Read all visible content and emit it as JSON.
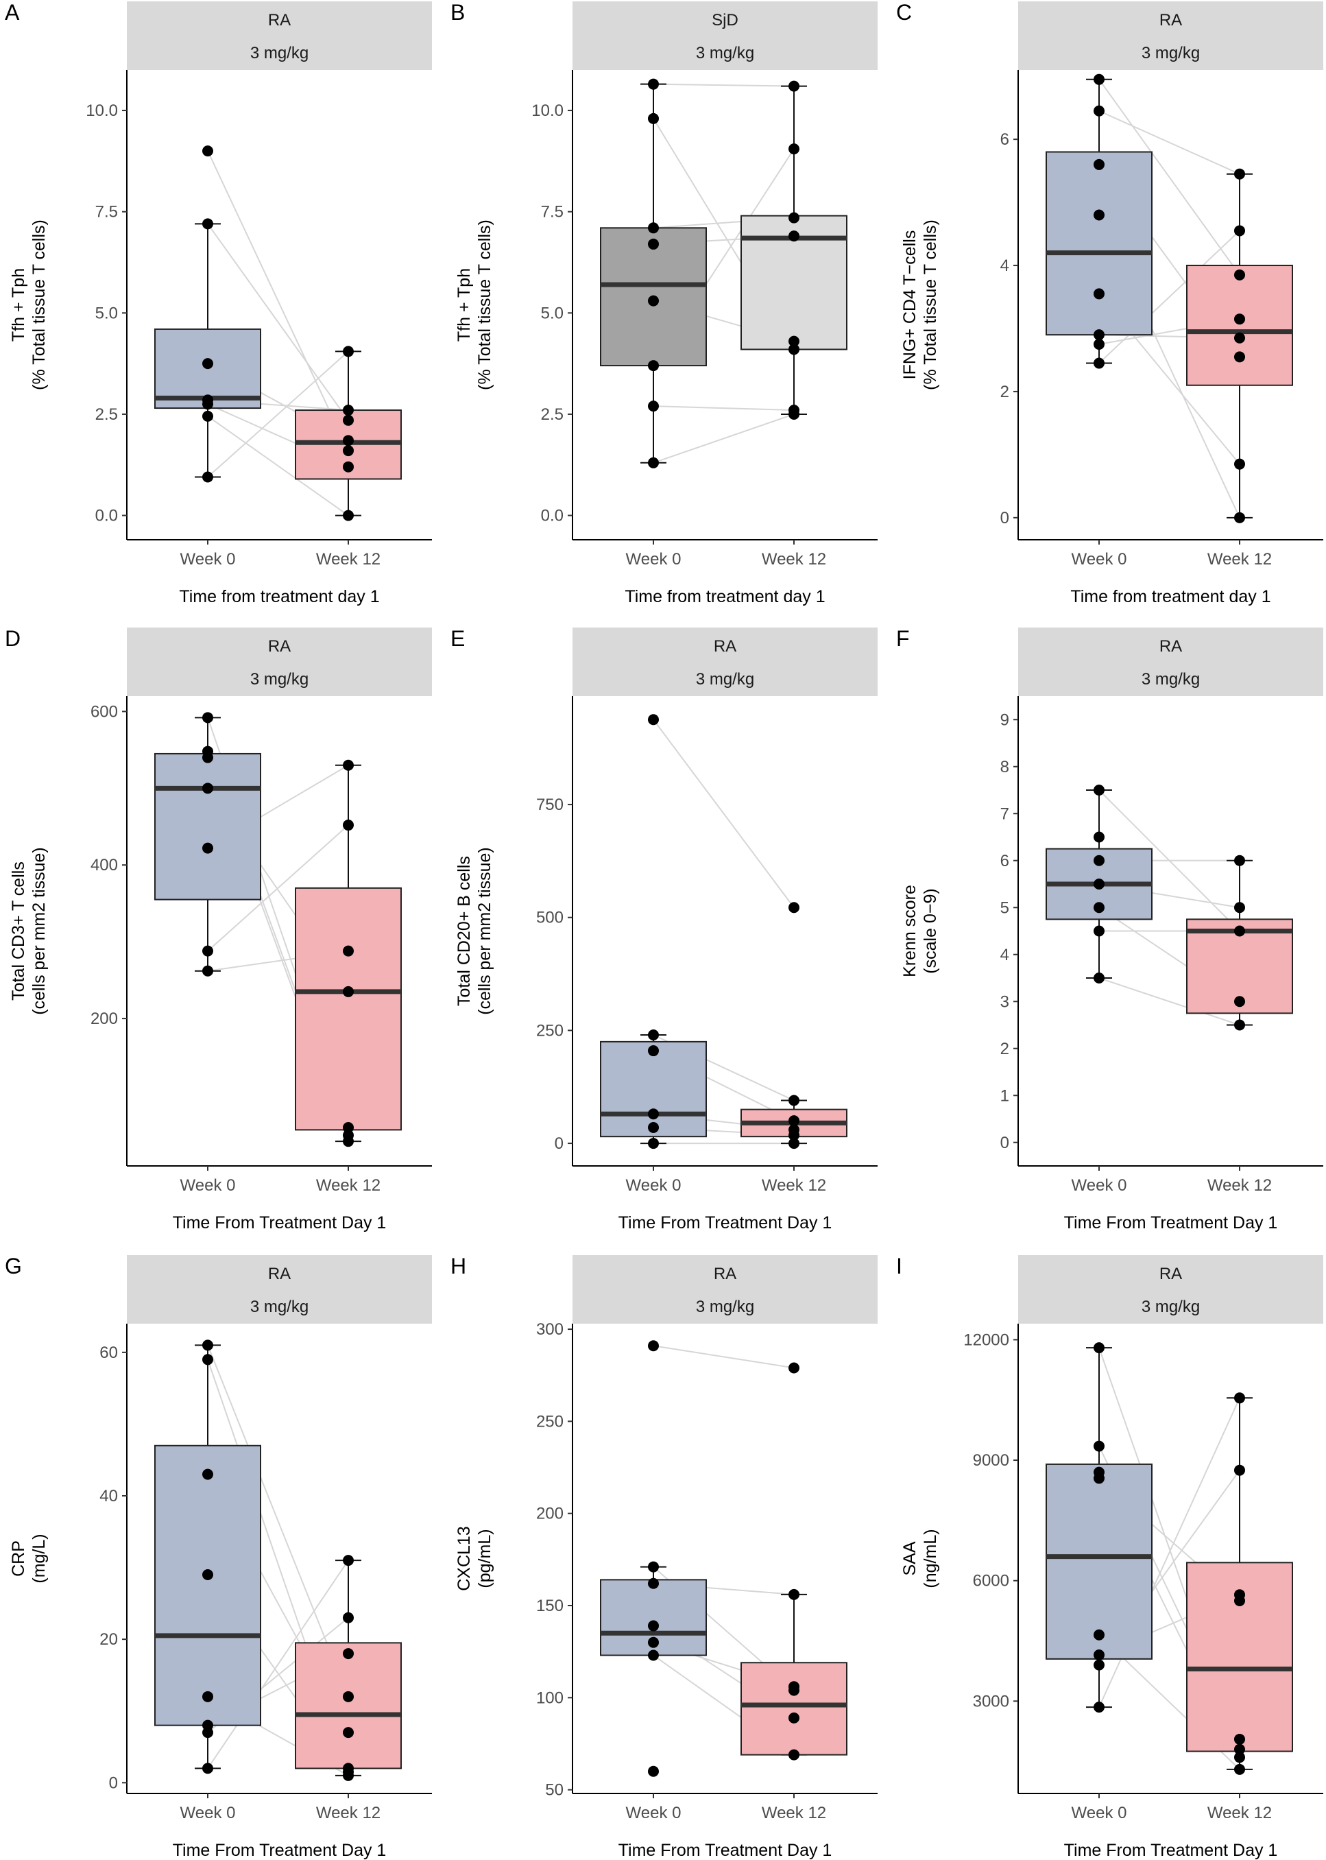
{
  "panels": [
    {
      "letter": "A",
      "strip": [
        "RA",
        "3 mg/kg"
      ],
      "ylabel": [
        "Tfh + Tph",
        "(% Total tissue T cells)"
      ],
      "xlabel": "Time from treatment day 1",
      "chart_data": {
        "type": "box",
        "categories": [
          "Week 0",
          "Week 12"
        ],
        "ylim": [
          -0.6,
          11.0
        ],
        "yticks": [
          0.0,
          2.5,
          5.0,
          7.5,
          10.0
        ],
        "ytick_labels": [
          "0.0",
          "2.5",
          "5.0",
          "7.5",
          "10.0"
        ],
        "fills": [
          "#b0bace",
          "#f3b3b6"
        ],
        "boxes": [
          {
            "q1": 2.65,
            "median": 2.9,
            "q3": 4.6,
            "wlo": 0.95,
            "whi": 7.2
          },
          {
            "q1": 0.9,
            "median": 1.8,
            "q3": 2.6,
            "wlo": 0.0,
            "whi": 4.05
          }
        ],
        "points": [
          [
            9.0,
            7.2,
            3.75,
            2.85,
            2.75,
            2.45,
            0.95
          ],
          [
            4.05,
            2.6,
            2.35,
            1.85,
            1.6,
            1.2,
            0.0
          ]
        ],
        "pairs": [
          [
            9.0,
            1.6
          ],
          [
            7.2,
            2.35
          ],
          [
            3.75,
            1.85
          ],
          [
            2.85,
            2.6
          ],
          [
            2.75,
            1.2
          ],
          [
            2.45,
            0.0
          ],
          [
            0.95,
            4.05
          ]
        ]
      }
    },
    {
      "letter": "B",
      "strip": [
        "SjD",
        "3 mg/kg"
      ],
      "ylabel": [
        "Tfh + Tph",
        "(% Total tissue T cells)"
      ],
      "xlabel": "Time from treatment day 1",
      "chart_data": {
        "type": "box",
        "categories": [
          "Week 0",
          "Week 12"
        ],
        "ylim": [
          -0.6,
          11.0
        ],
        "yticks": [
          0.0,
          2.5,
          5.0,
          7.5,
          10.0
        ],
        "ytick_labels": [
          "0.0",
          "2.5",
          "5.0",
          "7.5",
          "10.0"
        ],
        "fills": [
          "#a3a3a3",
          "#dcdcdc"
        ],
        "boxes": [
          {
            "q1": 3.7,
            "median": 5.7,
            "q3": 7.1,
            "wlo": 1.3,
            "whi": 10.65
          },
          {
            "q1": 4.1,
            "median": 6.85,
            "q3": 7.4,
            "wlo": 2.5,
            "whi": 10.6
          }
        ],
        "points": [
          [
            10.65,
            9.8,
            7.1,
            6.7,
            5.3,
            3.7,
            2.7,
            1.3
          ],
          [
            10.6,
            9.05,
            7.35,
            6.9,
            4.3,
            4.1,
            2.6,
            2.5
          ]
        ],
        "pairs": [
          [
            10.65,
            10.6
          ],
          [
            9.8,
            4.1
          ],
          [
            7.1,
            7.35
          ],
          [
            6.7,
            6.9
          ],
          [
            5.3,
            4.3
          ],
          [
            3.7,
            9.05
          ],
          [
            2.7,
            2.6
          ],
          [
            1.3,
            2.5
          ]
        ]
      }
    },
    {
      "letter": "C",
      "strip": [
        "RA",
        "3 mg/kg"
      ],
      "ylabel": [
        "IFNG+ CD4 T−cells",
        "(% Total tissue T cells)"
      ],
      "xlabel": "Time from treatment day 1",
      "chart_data": {
        "type": "box",
        "categories": [
          "Week 0",
          "Week 12"
        ],
        "ylim": [
          -0.35,
          7.1
        ],
        "yticks": [
          0,
          2,
          4,
          6
        ],
        "ytick_labels": [
          "0",
          "2",
          "4",
          "6"
        ],
        "fills": [
          "#b0bace",
          "#f3b3b6"
        ],
        "boxes": [
          {
            "q1": 2.9,
            "median": 4.2,
            "q3": 5.8,
            "wlo": 2.45,
            "whi": 6.95
          },
          {
            "q1": 2.1,
            "median": 2.95,
            "q3": 4.0,
            "wlo": 0.0,
            "whi": 5.45
          }
        ],
        "points": [
          [
            6.95,
            6.45,
            5.6,
            4.8,
            3.55,
            2.9,
            2.75,
            2.45
          ],
          [
            5.45,
            4.55,
            3.85,
            3.15,
            2.85,
            2.55,
            0.85,
            0.0
          ]
        ],
        "pairs": [
          [
            6.95,
            3.85
          ],
          [
            6.45,
            5.45
          ],
          [
            5.6,
            2.55
          ],
          [
            4.8,
            0.0
          ],
          [
            3.55,
            0.85
          ],
          [
            2.9,
            2.85
          ],
          [
            2.75,
            3.15
          ],
          [
            2.45,
            4.55
          ]
        ]
      }
    },
    {
      "letter": "D",
      "strip": [
        "RA",
        "3 mg/kg"
      ],
      "ylabel": [
        "Total CD3+ T cells",
        "(cells per mm2 tissue)"
      ],
      "xlabel": "Time From Treatment Day 1",
      "chart_data": {
        "type": "box",
        "categories": [
          "Week 0",
          "Week 12"
        ],
        "ylim": [
          8,
          620
        ],
        "yticks": [
          200,
          400,
          600
        ],
        "ytick_labels": [
          "200",
          "400",
          "600"
        ],
        "fills": [
          "#b0bace",
          "#f3b3b6"
        ],
        "boxes": [
          {
            "q1": 355,
            "median": 500,
            "q3": 545,
            "wlo": 262,
            "whi": 592
          },
          {
            "q1": 55,
            "median": 235,
            "q3": 370,
            "wlo": 40,
            "whi": 530
          }
        ],
        "points": [
          [
            592,
            548,
            540,
            500,
            422,
            288,
            262
          ],
          [
            530,
            452,
            288,
            235,
            58,
            48,
            40
          ]
        ],
        "pairs": [
          [
            592,
            58
          ],
          [
            548,
            48
          ],
          [
            540,
            40
          ],
          [
            500,
            235
          ],
          [
            422,
            530
          ],
          [
            288,
            452
          ],
          [
            262,
            288
          ]
        ]
      }
    },
    {
      "letter": "E",
      "strip": [
        "RA",
        "3 mg/kg"
      ],
      "ylabel": [
        "Total CD20+ B cells",
        "(cells per mm2 tissue)"
      ],
      "xlabel": "Time From Treatment Day 1",
      "chart_data": {
        "type": "box",
        "categories": [
          "Week 0",
          "Week 12"
        ],
        "ylim": [
          -50,
          990
        ],
        "yticks": [
          0,
          250,
          500,
          750
        ],
        "ytick_labels": [
          "0",
          "250",
          "500",
          "750"
        ],
        "fills": [
          "#b0bace",
          "#f3b3b6"
        ],
        "boxes": [
          {
            "q1": 15,
            "median": 65,
            "q3": 225,
            "wlo": 0,
            "whi": 240
          },
          {
            "q1": 15,
            "median": 45,
            "q3": 75,
            "wlo": 0,
            "whi": 95
          }
        ],
        "points": [
          [
            938,
            240,
            205,
            65,
            35,
            0
          ],
          [
            522,
            95,
            50,
            30,
            18,
            0
          ]
        ],
        "pairs": [
          [
            938,
            522
          ],
          [
            240,
            95
          ],
          [
            205,
            50
          ],
          [
            65,
            30
          ],
          [
            35,
            18
          ],
          [
            0,
            0
          ]
        ]
      }
    },
    {
      "letter": "F",
      "strip": [
        "RA",
        "3 mg/kg"
      ],
      "ylabel": [
        "Krenn score",
        "(scale 0−9)"
      ],
      "xlabel": "Time From Treatment Day 1",
      "chart_data": {
        "type": "box",
        "categories": [
          "Week 0",
          "Week 12"
        ],
        "ylim": [
          -0.5,
          9.5
        ],
        "yticks": [
          0,
          1,
          2,
          3,
          4,
          5,
          6,
          7,
          8,
          9
        ],
        "ytick_labels": [
          "0",
          "1",
          "2",
          "3",
          "4",
          "5",
          "6",
          "7",
          "8",
          "9"
        ],
        "fills": [
          "#b0bace",
          "#f3b3b6"
        ],
        "boxes": [
          {
            "q1": 4.75,
            "median": 5.5,
            "q3": 6.25,
            "wlo": 3.5,
            "whi": 7.5
          },
          {
            "q1": 2.75,
            "median": 4.5,
            "q3": 4.75,
            "wlo": 2.5,
            "whi": 6.0
          }
        ],
        "points": [
          [
            7.5,
            6.5,
            6.0,
            5.5,
            5.0,
            4.5,
            3.5
          ],
          [
            6.0,
            5.0,
            4.5,
            3.0,
            2.5
          ]
        ],
        "pairs": [
          [
            7.5,
            4.5
          ],
          [
            6.0,
            6.0
          ],
          [
            5.5,
            5.0
          ],
          [
            5.0,
            3.0
          ],
          [
            4.5,
            4.5
          ],
          [
            3.5,
            2.5
          ]
        ]
      }
    },
    {
      "letter": "G",
      "strip": [
        "RA",
        "3 mg/kg"
      ],
      "ylabel": [
        "CRP",
        "(mg/L)"
      ],
      "xlabel": "Time From Treatment Day 1",
      "chart_data": {
        "type": "box",
        "categories": [
          "Week 0",
          "Week 12"
        ],
        "ylim": [
          -1.5,
          64
        ],
        "yticks": [
          0,
          20,
          40,
          60
        ],
        "ytick_labels": [
          "0",
          "20",
          "40",
          "60"
        ],
        "fills": [
          "#b0bace",
          "#f3b3b6"
        ],
        "boxes": [
          {
            "q1": 8.0,
            "median": 20.5,
            "q3": 47.0,
            "wlo": 2.0,
            "whi": 61.0
          },
          {
            "q1": 2.0,
            "median": 9.5,
            "q3": 19.5,
            "wlo": 1.0,
            "whi": 31.0
          }
        ],
        "points": [
          [
            61.0,
            59.0,
            43.0,
            29.0,
            12.0,
            8.0,
            7.0,
            2.0
          ],
          [
            31.0,
            23.0,
            18.0,
            12.0,
            7.0,
            2.0,
            1.5,
            1.0
          ]
        ],
        "pairs": [
          [
            61.0,
            12.0
          ],
          [
            59.0,
            2.0
          ],
          [
            43.0,
            7.0
          ],
          [
            29.0,
            1.5
          ],
          [
            12.0,
            1.0
          ],
          [
            8.0,
            18.0
          ],
          [
            7.0,
            23.0
          ],
          [
            2.0,
            31.0
          ]
        ]
      }
    },
    {
      "letter": "H",
      "strip": [
        "RA",
        "3 mg/kg"
      ],
      "ylabel": [
        "CXCL13",
        "(pg/mL)"
      ],
      "xlabel": "Time From Treatment Day 1",
      "chart_data": {
        "type": "box",
        "categories": [
          "Week 0",
          "Week 12"
        ],
        "ylim": [
          48,
          303
        ],
        "yticks": [
          50,
          100,
          150,
          200,
          250,
          300
        ],
        "ytick_labels": [
          "50",
          "100",
          "150",
          "200",
          "250",
          "300"
        ],
        "fills": [
          "#b0bace",
          "#f3b3b6"
        ],
        "boxes": [
          {
            "q1": 123,
            "median": 135,
            "q3": 164,
            "wlo": 123,
            "whi": 171
          },
          {
            "q1": 69,
            "median": 96,
            "q3": 119,
            "wlo": 69,
            "whi": 156
          }
        ],
        "points": [
          [
            291,
            171,
            162,
            139,
            130,
            123,
            60
          ],
          [
            279,
            156,
            106,
            104,
            89,
            69
          ]
        ],
        "pairs": [
          [
            291,
            279
          ],
          [
            171,
            104
          ],
          [
            162,
            156
          ],
          [
            139,
            89
          ],
          [
            130,
            106
          ],
          [
            123,
            69
          ]
        ]
      }
    },
    {
      "letter": "I",
      "strip": [
        "RA",
        "3 mg/kg"
      ],
      "ylabel": [
        "SAA",
        "(ng/mL)"
      ],
      "xlabel": "Time From Treatment Day 1",
      "chart_data": {
        "type": "box",
        "categories": [
          "Week 0",
          "Week 12"
        ],
        "ylim": [
          700,
          12400
        ],
        "yticks": [
          3000,
          6000,
          9000,
          12000
        ],
        "ytick_labels": [
          "3000",
          "6000",
          "9000",
          "12000"
        ],
        "fills": [
          "#b0bace",
          "#f3b3b6"
        ],
        "boxes": [
          {
            "q1": 4050,
            "median": 6600,
            "q3": 8900,
            "wlo": 2850,
            "whi": 11800
          },
          {
            "q1": 1750,
            "median": 3800,
            "q3": 6450,
            "wlo": 1300,
            "whi": 10550
          }
        ],
        "points": [
          [
            11800,
            9350,
            8700,
            8550,
            4650,
            4150,
            3900,
            2850
          ],
          [
            10550,
            8750,
            5650,
            5500,
            2050,
            1800,
            1600,
            1300
          ]
        ],
        "pairs": [
          [
            11800,
            1800
          ],
          [
            9350,
            2050
          ],
          [
            8700,
            1600
          ],
          [
            8550,
            5500
          ],
          [
            4650,
            1300
          ],
          [
            4150,
            5650
          ],
          [
            3900,
            8750
          ],
          [
            2850,
            10550
          ]
        ]
      }
    }
  ]
}
